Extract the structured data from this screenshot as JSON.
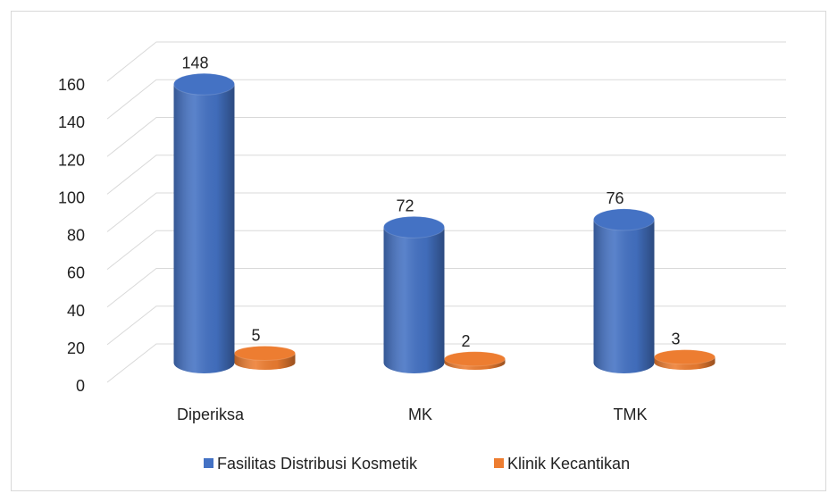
{
  "chart_data": {
    "type": "bar3d",
    "categories": [
      "Diperiksa",
      "MK",
      "TMK"
    ],
    "series": [
      {
        "name": "Fasilitas Distribusi Kosmetik",
        "color": "#4472c4",
        "values": [
          148,
          72,
          76
        ]
      },
      {
        "name": "Klinik Kecantikan",
        "color": "#ed7d31",
        "values": [
          5,
          2,
          3
        ]
      }
    ],
    "ylim": [
      0,
      160
    ],
    "yticks": [
      0,
      20,
      40,
      60,
      80,
      100,
      120,
      140,
      160
    ],
    "grid": true,
    "legend": "bottom"
  }
}
